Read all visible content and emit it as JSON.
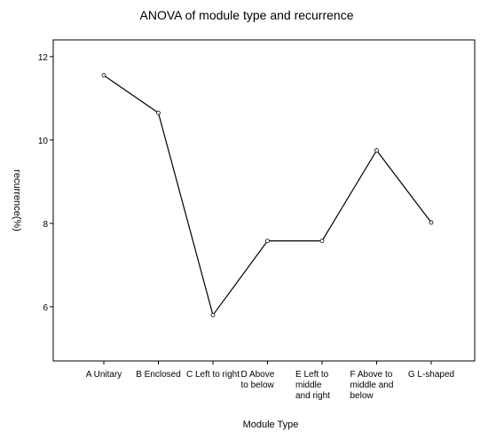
{
  "chart_data": {
    "type": "line",
    "title": "ANOVA of module type and recurrence",
    "xlabel": "Module Type",
    "ylabel": "recurrence(%)",
    "categories": [
      "A Unitary",
      "B Enclosed",
      "C Left to right",
      "D Above to below",
      "E Left to middle and right",
      "F Above to middle and below",
      "G L-shaped"
    ],
    "category_label_lines": [
      [
        "A Unitary"
      ],
      [
        "B Enclosed"
      ],
      [
        "C Left to right"
      ],
      [
        "D Above",
        "to below"
      ],
      [
        "E Left to",
        "middle",
        "and right"
      ],
      [
        "F Above to",
        "middle and",
        "below"
      ],
      [
        "G L-shaped"
      ]
    ],
    "values": [
      11.55,
      10.65,
      5.8,
      7.58,
      7.58,
      9.75,
      8.02
    ],
    "yticks": [
      6,
      8,
      10,
      12
    ],
    "ylim": [
      4.7,
      12.4
    ],
    "grid": false,
    "legend": "none",
    "colors": {
      "line": "#000000",
      "marker": "#ffffff",
      "frame": "#000000"
    }
  }
}
